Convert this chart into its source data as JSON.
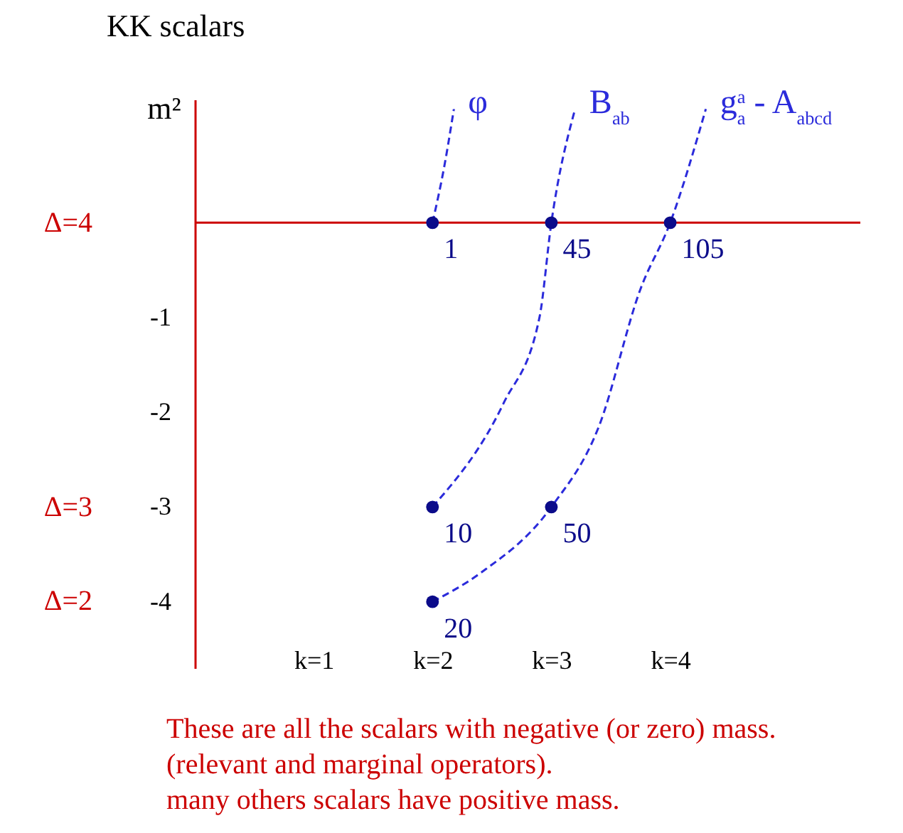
{
  "chart_data": {
    "type": "line",
    "title": "KK scalars",
    "ylabel": "m²",
    "xlim": [
      0,
      5.6
    ],
    "xticks": [
      {
        "value": 1,
        "label": "k=1"
      },
      {
        "value": 2,
        "label": "k=2"
      },
      {
        "value": 3,
        "label": "k=3"
      },
      {
        "value": 4,
        "label": "k=4"
      }
    ],
    "ylim": [
      -4.7,
      1.3
    ],
    "yticks": [
      -1,
      -2,
      -3,
      -4
    ],
    "line_style": "dashed",
    "series": [
      {
        "name": "φ",
        "color": "#2b2bdb",
        "x": [
          2,
          2.1,
          2.18
        ],
        "values": [
          0,
          0.6,
          1.2
        ]
      },
      {
        "name": "B$_{ab}$",
        "color": "#2b2bdb",
        "x": [
          2,
          2.6,
          2.9,
          3,
          3.2
        ],
        "values": [
          -3,
          -1.9,
          -1,
          0,
          1.2
        ]
      },
      {
        "name": "g$^{a}$$_{a}$ - A$_{abcd}$",
        "color": "#2b2bdb",
        "x": [
          2,
          2.4,
          3,
          3.4,
          3.75,
          4,
          4.3
        ],
        "values": [
          -4,
          -3.7,
          -3,
          -2.15,
          -0.7,
          0,
          1.2
        ]
      },
      {
        "type": "scatter",
        "color": "#0b0b8a",
        "marker": "circle",
        "x": [
          2,
          2,
          2,
          3,
          3,
          4
        ],
        "values": [
          0,
          -3,
          -4,
          0,
          -3,
          0
        ]
      }
    ],
    "ref_lines": [
      {
        "axis": "y",
        "value": 0,
        "color": "#cc0000"
      }
    ],
    "annotations": [
      {
        "text": "1",
        "x": 2,
        "y": 0
      },
      {
        "text": "10",
        "x": 2,
        "y": -3
      },
      {
        "text": "20",
        "x": 2,
        "y": -4
      },
      {
        "text": "45",
        "x": 3,
        "y": 0
      },
      {
        "text": "50",
        "x": 3,
        "y": -3
      },
      {
        "text": "105",
        "x": 4,
        "y": 0
      },
      "Δ=4",
      "Δ=3",
      "Δ=2",
      "These are all the scalars with negative (or zero) mass.",
      "(relevant and marginal operators).",
      "many others scalars have positive mass."
    ]
  }
}
